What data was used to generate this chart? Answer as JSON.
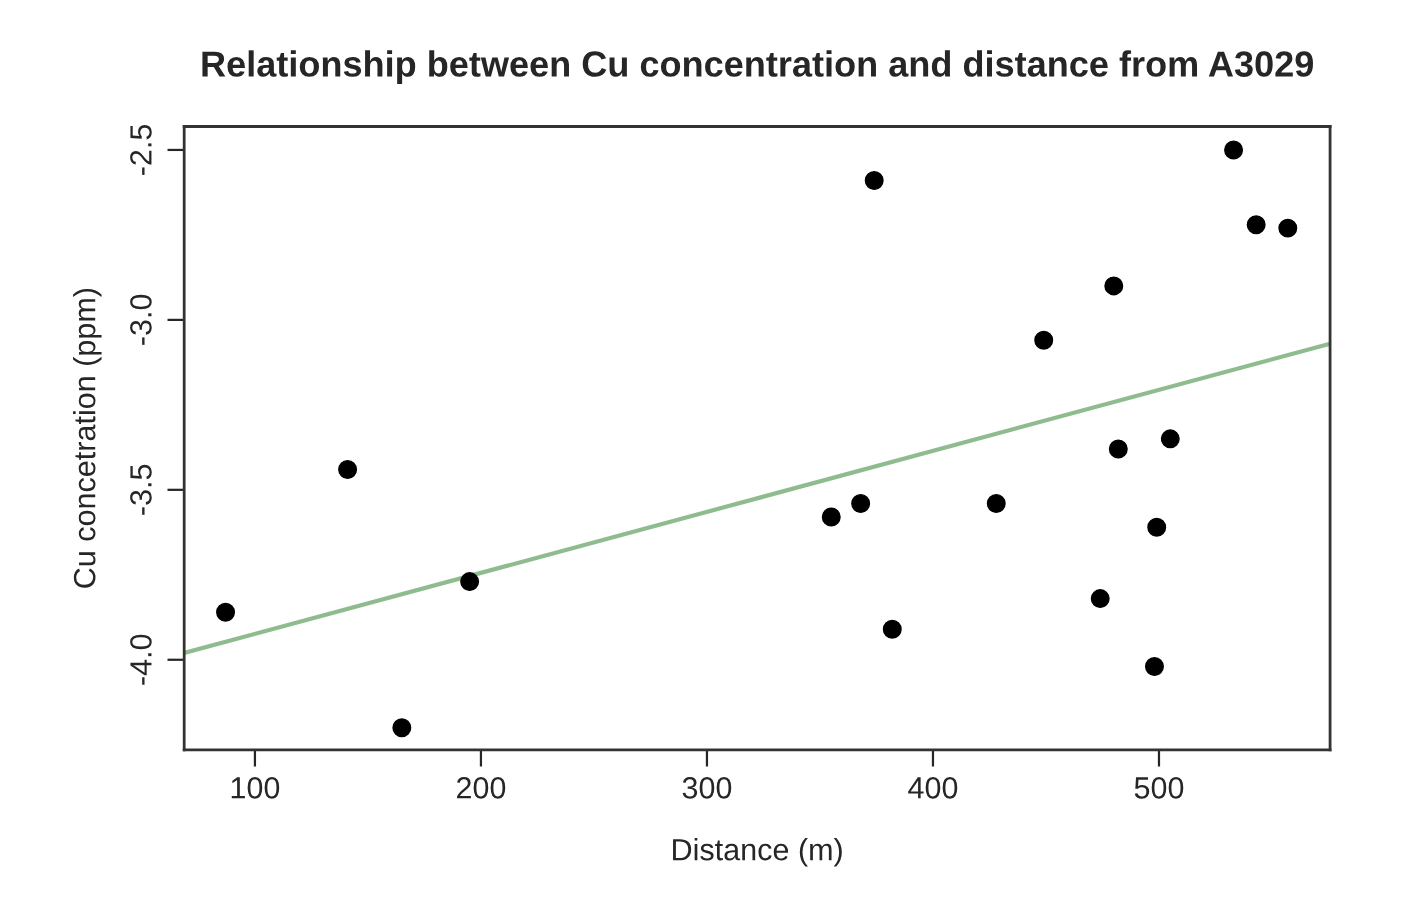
{
  "chart_data": {
    "type": "scatter",
    "title": "Relationship between Cu concentration and distance from A3029",
    "xlabel": "Distance (m)",
    "ylabel": "Cu concetration (ppm)",
    "xlim": [
      68.7,
      575.7
    ],
    "ylim": [
      -4.265,
      -2.431
    ],
    "xticks": [
      100,
      200,
      300,
      400,
      500
    ],
    "yticks": [
      {
        "value": -4.0,
        "label": "-4.0"
      },
      {
        "value": -3.5,
        "label": "-3.5"
      },
      {
        "value": -3.0,
        "label": "-3.0"
      },
      {
        "value": -2.5,
        "label": "-2.5"
      }
    ],
    "grid": false,
    "legend": false,
    "marker": "circle",
    "series": [
      {
        "color": "#000000",
        "x": [
          87,
          141,
          165,
          195,
          374,
          533,
          543,
          557,
          480,
          449,
          482,
          505,
          355,
          368,
          428,
          499,
          382,
          474,
          498
        ],
        "values": [
          -3.86,
          -3.44,
          -4.2,
          -3.77,
          -2.59,
          -2.5,
          -2.72,
          -2.73,
          -2.9,
          -3.06,
          -3.38,
          -3.35,
          -3.58,
          -3.54,
          -3.54,
          -3.61,
          -3.91,
          -3.82,
          -4.02
        ]
      },
      {
        "type": "line",
        "color": "#8fbc8f",
        "x": [
          68.7,
          575.7
        ],
        "values": [
          -3.98,
          -3.07
        ],
        "line_style": "solid",
        "marker": "none"
      }
    ]
  }
}
